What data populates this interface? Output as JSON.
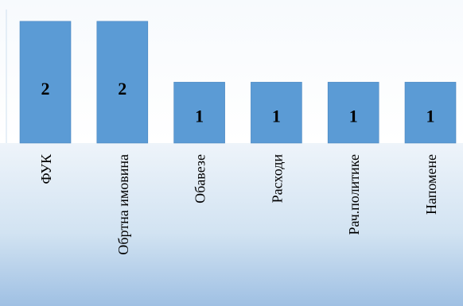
{
  "chart_data": {
    "type": "bar",
    "categories": [
      "ФУК",
      "Обртна имовина",
      "Обавезе",
      "Расходи",
      "Рач.политике",
      "Напомене"
    ],
    "values": [
      2,
      2,
      1,
      1,
      1,
      1
    ],
    "data_labels": [
      "2",
      "2",
      "1",
      "1",
      "1",
      "1"
    ],
    "title": "",
    "xlabel": "",
    "ylabel": "",
    "ylim": [
      0,
      2.35
    ],
    "grid": false,
    "legend": "none",
    "bar_color": "#5b9bd5",
    "bar_edge_color": "#4a86c0",
    "label_color": "#000000",
    "plot_background": "#ffffff",
    "category_band_gradient": [
      "#eef4fa",
      "#d2e3f2",
      "#9fc0e3"
    ]
  }
}
